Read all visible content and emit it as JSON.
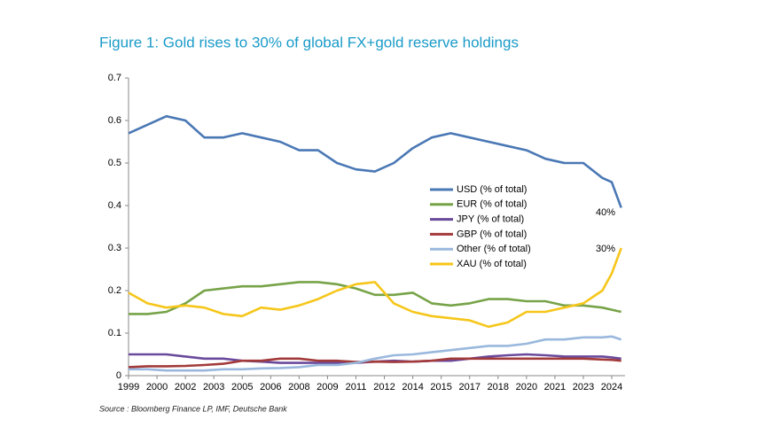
{
  "chart_data": {
    "type": "line",
    "title": "Figure 1: Gold rises to 30% of global FX+gold reserve holdings",
    "source": "Source : Bloomberg Finance LP, IMF, Deutsche Bank",
    "annotations": [
      "40%",
      "30%"
    ],
    "x": [
      1999,
      2000,
      2001,
      2002,
      2003,
      2004,
      2005,
      2006,
      2007,
      2008,
      2009,
      2010,
      2011,
      2012,
      2013,
      2014,
      2015,
      2016,
      2017,
      2018,
      2019,
      2020,
      2021,
      2022,
      2023,
      2024,
      2024.5,
      2025
    ],
    "xlim": [
      1999,
      2025.2
    ],
    "xticks": [
      1999,
      {
        "value": 2000.5,
        "label": "2000"
      },
      2002,
      {
        "value": 2003.5,
        "label": "2003"
      },
      2005,
      {
        "value": 2006.5,
        "label": "2006"
      },
      2008,
      {
        "value": 2009.5,
        "label": "2009"
      },
      2011,
      {
        "value": 2012.5,
        "label": "2012"
      },
      2014,
      {
        "value": 2015.5,
        "label": "2015"
      },
      2017,
      {
        "value": 2018.5,
        "label": "2018"
      },
      2020,
      {
        "value": 2021.5,
        "label": "2021"
      },
      2023,
      {
        "value": 2024.5,
        "label": "2024"
      }
    ],
    "ylim": [
      0,
      0.7
    ],
    "yticks": [
      0,
      0.1,
      0.2,
      0.3,
      0.4,
      0.5,
      0.6,
      0.7
    ],
    "grid": false,
    "legend": "center",
    "series": [
      {
        "name": "USD (% of total)",
        "color": "#4a78b5",
        "values": [
          0.57,
          0.59,
          0.61,
          0.6,
          0.56,
          0.56,
          0.57,
          0.56,
          0.55,
          0.53,
          0.53,
          0.5,
          0.485,
          0.48,
          0.5,
          0.535,
          0.56,
          0.57,
          0.56,
          0.55,
          0.54,
          0.53,
          0.51,
          0.5,
          0.5,
          0.465,
          0.455,
          0.395
        ]
      },
      {
        "name": "EUR (% of total)",
        "color": "#77a348",
        "values": [
          0.145,
          0.145,
          0.15,
          0.17,
          0.2,
          0.205,
          0.21,
          0.21,
          0.215,
          0.22,
          0.22,
          0.215,
          0.205,
          0.19,
          0.19,
          0.195,
          0.17,
          0.165,
          0.17,
          0.18,
          0.18,
          0.175,
          0.175,
          0.165,
          0.165,
          0.16,
          0.155,
          0.15
        ]
      },
      {
        "name": "JPY (% of total)",
        "color": "#6a4a9c",
        "values": [
          0.05,
          0.05,
          0.05,
          0.045,
          0.04,
          0.04,
          0.035,
          0.033,
          0.03,
          0.03,
          0.03,
          0.03,
          0.03,
          0.033,
          0.035,
          0.033,
          0.035,
          0.035,
          0.04,
          0.045,
          0.048,
          0.05,
          0.048,
          0.045,
          0.045,
          0.045,
          0.043,
          0.04
        ]
      },
      {
        "name": "GBP (% of total)",
        "color": "#a33a3a",
        "values": [
          0.02,
          0.022,
          0.022,
          0.023,
          0.025,
          0.028,
          0.035,
          0.035,
          0.04,
          0.04,
          0.035,
          0.035,
          0.032,
          0.033,
          0.032,
          0.033,
          0.035,
          0.04,
          0.04,
          0.04,
          0.04,
          0.04,
          0.04,
          0.04,
          0.04,
          0.038,
          0.037,
          0.035
        ]
      },
      {
        "name": "Other (% of total)",
        "color": "#9ab8dd",
        "values": [
          0.015,
          0.015,
          0.012,
          0.012,
          0.012,
          0.015,
          0.015,
          0.017,
          0.018,
          0.02,
          0.025,
          0.025,
          0.03,
          0.04,
          0.048,
          0.05,
          0.055,
          0.06,
          0.065,
          0.07,
          0.07,
          0.075,
          0.085,
          0.085,
          0.09,
          0.09,
          0.092,
          0.085
        ]
      },
      {
        "name": "XAU (% of total)",
        "color": "#f6c61a",
        "values": [
          0.195,
          0.17,
          0.16,
          0.165,
          0.16,
          0.145,
          0.14,
          0.16,
          0.155,
          0.165,
          0.18,
          0.2,
          0.215,
          0.22,
          0.17,
          0.15,
          0.14,
          0.135,
          0.13,
          0.115,
          0.125,
          0.15,
          0.15,
          0.16,
          0.17,
          0.2,
          0.24,
          0.3
        ]
      }
    ]
  }
}
